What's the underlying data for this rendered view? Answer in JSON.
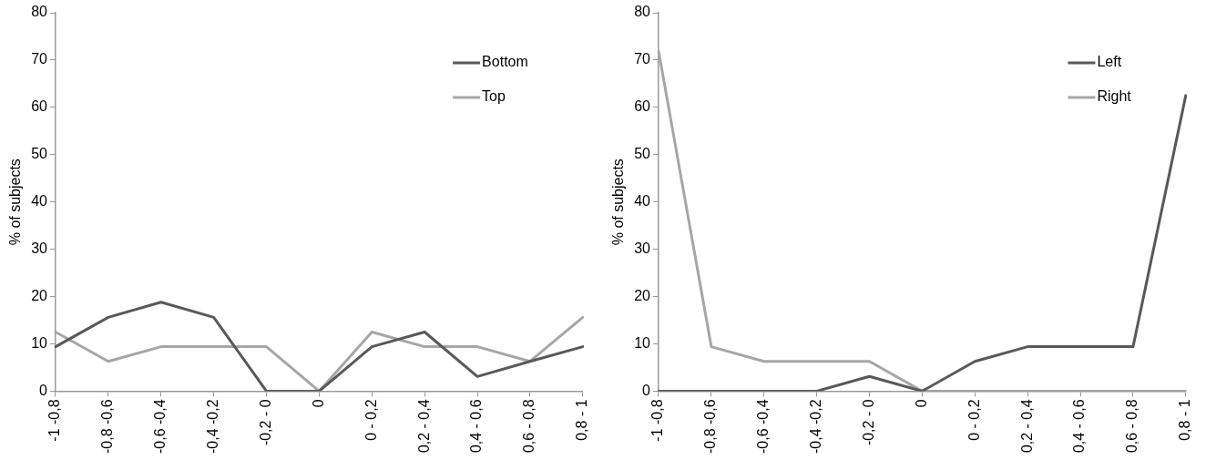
{
  "chart_data": [
    {
      "type": "line",
      "ylabel": "% of subjects",
      "categories": [
        "-1 -0,8",
        "-0,8 -0,6",
        "-0,6 -0,4",
        "-0,4 -0,2",
        "-0,2 - 0",
        "0",
        "0 - 0,2",
        "0,2 - 0,4",
        "0,4 - 0,6",
        "0,6 - 0,8",
        "0,8 - 1"
      ],
      "series": [
        {
          "name": "Bottom",
          "color": "#595959",
          "values": [
            9.4,
            15.6,
            18.8,
            15.6,
            0,
            0,
            9.4,
            12.5,
            3.1,
            6.3,
            9.4
          ]
        },
        {
          "name": "Top",
          "color": "#a6a6a6",
          "values": [
            12.5,
            6.3,
            9.4,
            9.4,
            9.4,
            0,
            12.5,
            9.4,
            9.4,
            6.3,
            15.6
          ]
        }
      ],
      "ylim": [
        0,
        80
      ],
      "yticks": [
        0,
        10,
        20,
        30,
        40,
        50,
        60,
        70,
        80
      ],
      "grid": false,
      "legend": "top right",
      "marker": "none",
      "line_style": "solid"
    },
    {
      "type": "line",
      "ylabel": "% of subjects",
      "categories": [
        "-1 -0,8",
        "-0,8 -0,6",
        "-0,6 -0,4",
        "-0,4 -0,2",
        "-0,2 - 0",
        "0",
        "0 - 0,2",
        "0,2 - 0,4",
        "0,4 - 0,6",
        "0,6 - 0,8",
        "0,8 - 1"
      ],
      "series": [
        {
          "name": "Left",
          "color": "#595959",
          "values": [
            0,
            0,
            0,
            0,
            3.1,
            0,
            6.3,
            9.4,
            9.4,
            9.4,
            62.5
          ]
        },
        {
          "name": "Right",
          "color": "#a6a6a6",
          "values": [
            71.9,
            9.4,
            6.3,
            6.3,
            6.3,
            0,
            0,
            0,
            0,
            0,
            0
          ]
        }
      ],
      "ylim": [
        0,
        80
      ],
      "yticks": [
        0,
        10,
        20,
        30,
        40,
        50,
        60,
        70,
        80
      ],
      "grid": false,
      "legend": "top right",
      "marker": "none",
      "line_style": "solid"
    }
  ]
}
